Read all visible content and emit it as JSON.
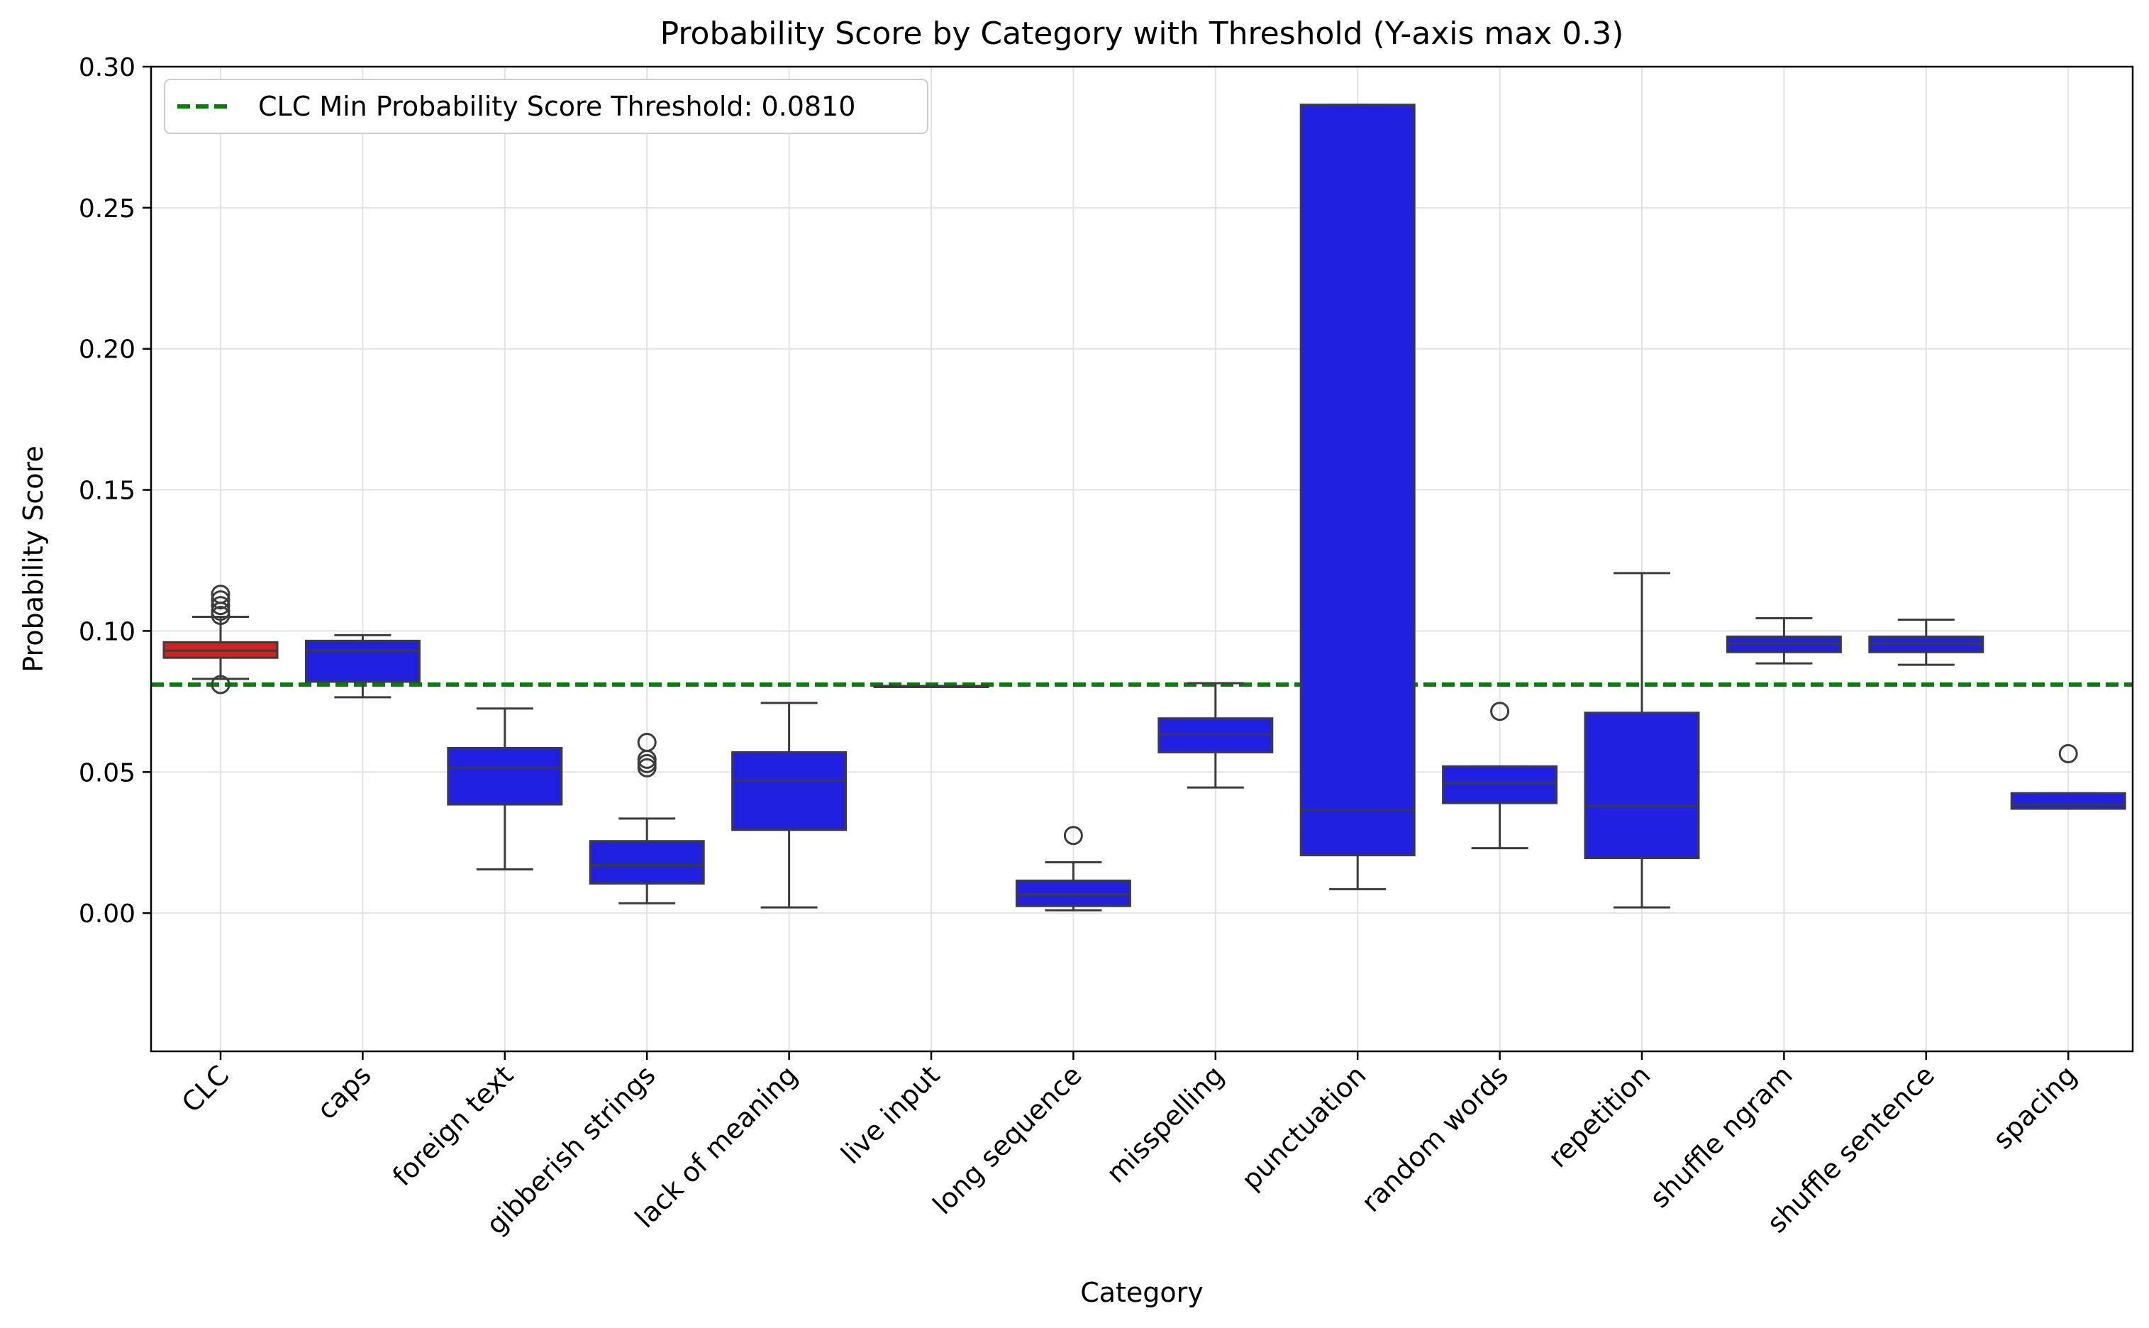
{
  "chart_data": {
    "type": "box",
    "title": "Probability Score by Category with Threshold (Y-axis max 0.3)",
    "xlabel": "Category",
    "ylabel": "Probability Score",
    "ylim": [
      -0.049,
      0.3
    ],
    "yticks": [
      0.0,
      0.05,
      0.1,
      0.15,
      0.2,
      0.25,
      0.3
    ],
    "ytick_labels": [
      "0.00",
      "0.05",
      "0.10",
      "0.15",
      "0.20",
      "0.25",
      "0.30"
    ],
    "grid": true,
    "legend_position": "top-left",
    "threshold": {
      "value": 0.081,
      "label": "CLC Min Probability Score Threshold: 0.0810",
      "color": "#008000",
      "style": "dashed"
    },
    "colors": {
      "highlight": "#d62020",
      "box": "#2020e0",
      "edge": "#3c3c3c",
      "grid": "#e3e3e3"
    },
    "categories": [
      "CLC",
      "caps",
      "foreign text",
      "gibberish strings",
      "lack of meaning",
      "live input",
      "long sequence",
      "misspelling",
      "punctuation",
      "random words",
      "repetition",
      "shuffle ngram",
      "shuffle sentence",
      "spacing"
    ],
    "boxes": [
      {
        "category": "CLC",
        "whisker_low": 0.083,
        "q1": 0.0905,
        "median": 0.093,
        "q3": 0.096,
        "whisker_high": 0.105,
        "outliers": [
          0.081,
          0.1055,
          0.107,
          0.109,
          0.111,
          0.113
        ],
        "color": "highlight"
      },
      {
        "category": "caps",
        "whisker_low": 0.0765,
        "q1": 0.082,
        "median": 0.093,
        "q3": 0.0965,
        "whisker_high": 0.0985,
        "outliers": [],
        "color": "box"
      },
      {
        "category": "foreign text",
        "whisker_low": 0.0155,
        "q1": 0.0385,
        "median": 0.0515,
        "q3": 0.0585,
        "whisker_high": 0.0725,
        "outliers": [],
        "color": "box"
      },
      {
        "category": "gibberish strings",
        "whisker_low": 0.0035,
        "q1": 0.0105,
        "median": 0.017,
        "q3": 0.0255,
        "whisker_high": 0.0335,
        "outliers": [
          0.0515,
          0.053,
          0.0545,
          0.0605
        ],
        "color": "box"
      },
      {
        "category": "lack of meaning",
        "whisker_low": 0.002,
        "q1": 0.0295,
        "median": 0.047,
        "q3": 0.057,
        "whisker_high": 0.0745,
        "outliers": [],
        "color": "box"
      },
      {
        "category": "live input",
        "whisker_low": 0.0805,
        "q1": 0.0805,
        "median": 0.0805,
        "q3": 0.0805,
        "whisker_high": 0.0805,
        "outliers": [],
        "color": "box"
      },
      {
        "category": "long sequence",
        "whisker_low": 0.001,
        "q1": 0.0025,
        "median": 0.0065,
        "q3": 0.0115,
        "whisker_high": 0.018,
        "outliers": [
          0.0275
        ],
        "color": "box"
      },
      {
        "category": "misspelling",
        "whisker_low": 0.0445,
        "q1": 0.057,
        "median": 0.0635,
        "q3": 0.069,
        "whisker_high": 0.0815,
        "outliers": [],
        "color": "box"
      },
      {
        "category": "punctuation",
        "whisker_low": 0.0085,
        "q1": 0.0205,
        "median": 0.0365,
        "q3": 0.2865,
        "whisker_high": 0.2865,
        "outliers": [],
        "color": "box"
      },
      {
        "category": "random words",
        "whisker_low": 0.023,
        "q1": 0.039,
        "median": 0.046,
        "q3": 0.052,
        "whisker_high": 0.052,
        "outliers": [
          0.0715
        ],
        "color": "box"
      },
      {
        "category": "repetition",
        "whisker_low": 0.002,
        "q1": 0.0195,
        "median": 0.038,
        "q3": 0.071,
        "whisker_high": 0.1205,
        "outliers": [],
        "color": "box"
      },
      {
        "category": "shuffle ngram",
        "whisker_low": 0.0885,
        "q1": 0.0925,
        "median": 0.0955,
        "q3": 0.098,
        "whisker_high": 0.1045,
        "outliers": [],
        "color": "box"
      },
      {
        "category": "shuffle sentence",
        "whisker_low": 0.088,
        "q1": 0.0925,
        "median": 0.0955,
        "q3": 0.098,
        "whisker_high": 0.104,
        "outliers": [],
        "color": "box"
      },
      {
        "category": "spacing",
        "whisker_low": 0.037,
        "q1": 0.037,
        "median": 0.0385,
        "q3": 0.0425,
        "whisker_high": 0.0425,
        "outliers": [
          0.0565
        ],
        "color": "box"
      }
    ]
  }
}
